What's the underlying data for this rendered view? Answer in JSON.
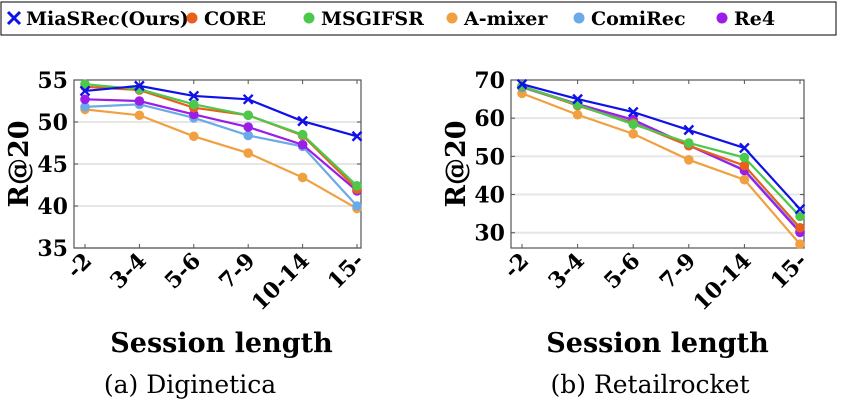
{
  "legend": [
    {
      "name": "MiaSRec(Ours)",
      "color": "#1010e8",
      "marker": "x"
    },
    {
      "name": "CORE",
      "color": "#e8601c",
      "marker": "circle"
    },
    {
      "name": "MSGIFSR",
      "color": "#4cc94c",
      "marker": "circle"
    },
    {
      "name": "A-mixer",
      "color": "#f0a040",
      "marker": "circle"
    },
    {
      "name": "ComiRec",
      "color": "#6aaae6",
      "marker": "circle"
    },
    {
      "name": "Re4",
      "color": "#9a1ee8",
      "marker": "circle"
    }
  ],
  "chart_data": [
    {
      "type": "line",
      "caption": "(a) Diginetica",
      "xlabel": "Session length",
      "ylabel": "R@20",
      "categories": [
        "-2",
        "3-4",
        "5-6",
        "7-9",
        "10-14",
        "15-"
      ],
      "ylim": [
        35,
        55
      ],
      "yticks": [
        35,
        40,
        45,
        50,
        55
      ],
      "grid": true,
      "series": [
        {
          "name": "A-mixer",
          "values": [
            51.5,
            50.8,
            48.3,
            46.3,
            43.4,
            39.7
          ]
        },
        {
          "name": "ComiRec",
          "values": [
            51.8,
            52.1,
            50.5,
            48.4,
            47.1,
            40.0
          ]
        },
        {
          "name": "Re4",
          "values": [
            52.7,
            52.5,
            50.9,
            49.4,
            47.3,
            41.8
          ]
        },
        {
          "name": "CORE",
          "values": [
            54.2,
            53.8,
            51.7,
            50.8,
            48.4,
            42.0
          ]
        },
        {
          "name": "MSGIFSR",
          "values": [
            54.5,
            53.9,
            52.1,
            50.8,
            48.5,
            42.4
          ]
        },
        {
          "name": "MiaSRec(Ours)",
          "values": [
            53.7,
            54.3,
            53.1,
            52.7,
            50.1,
            48.3
          ]
        }
      ]
    },
    {
      "type": "line",
      "caption": "(b) Retailrocket",
      "xlabel": "Session length",
      "ylabel": "R@20",
      "categories": [
        "-2",
        "3-4",
        "5-6",
        "7-9",
        "10-14",
        "15-"
      ],
      "ylim": [
        26,
        70
      ],
      "yticks": [
        30,
        40,
        50,
        60,
        70
      ],
      "grid": true,
      "series": [
        {
          "name": "A-mixer",
          "values": [
            66.5,
            60.9,
            55.9,
            49.1,
            43.9,
            27.0
          ]
        },
        {
          "name": "ComiRec",
          "values": [
            68.0,
            63.5,
            59.2,
            52.8,
            46.5,
            30.5
          ]
        },
        {
          "name": "Re4",
          "values": [
            68.3,
            63.7,
            59.6,
            52.9,
            46.3,
            30.1
          ]
        },
        {
          "name": "CORE",
          "values": [
            68.3,
            63.3,
            58.7,
            52.8,
            47.6,
            31.3
          ]
        },
        {
          "name": "MSGIFSR",
          "values": [
            68.4,
            63.5,
            58.4,
            53.5,
            49.7,
            34.3
          ]
        },
        {
          "name": "MiaSRec(Ours)",
          "values": [
            68.9,
            65.0,
            61.6,
            56.9,
            52.2,
            36.2
          ]
        }
      ]
    }
  ]
}
